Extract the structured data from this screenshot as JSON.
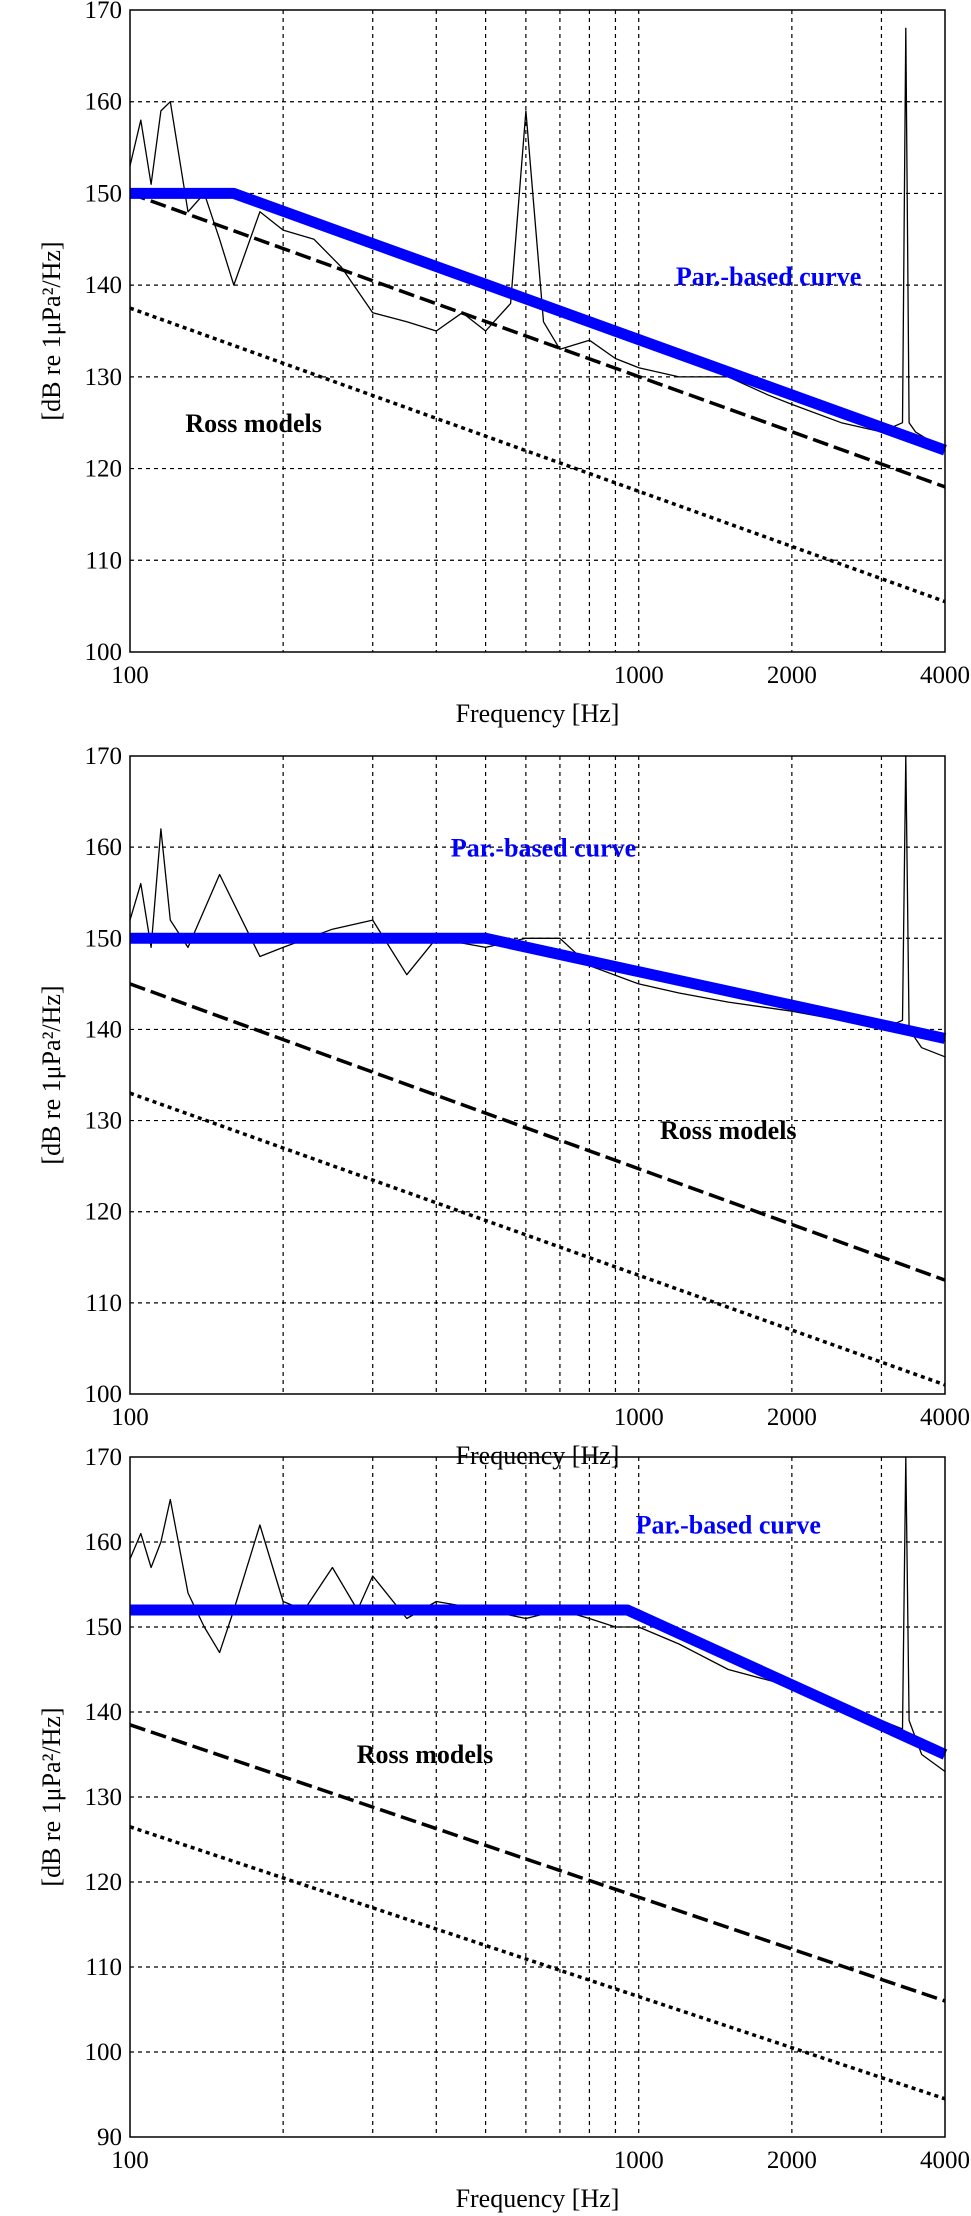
{
  "chart_data": [
    {
      "type": "line",
      "x_scale": "log",
      "xlim": [
        100,
        4000
      ],
      "ylim": [
        100,
        170
      ],
      "xticks": [
        100,
        1000,
        2000,
        4000
      ],
      "xtick_labels": [
        "100",
        "1000",
        "2000",
        "4000"
      ],
      "yticks": [
        100,
        110,
        120,
        130,
        140,
        150,
        160,
        170
      ],
      "xlabel": "Frequency [Hz]",
      "ylabel": "[dB re 1μPa²/Hz]",
      "grid": true,
      "series": [
        {
          "name": "Par.-based curve",
          "color": "#0000ff",
          "style": "solid-thick",
          "x": [
            100,
            160,
            4000
          ],
          "y": [
            150,
            150,
            122
          ],
          "label_text": "Par.-based curve",
          "label_at": [
            1800,
            140
          ]
        },
        {
          "name": "Ross model (dashed)",
          "color": "#000000",
          "style": "dashed",
          "x": [
            100,
            4000
          ],
          "y": [
            150,
            118
          ]
        },
        {
          "name": "Ross model (dotted)",
          "color": "#000000",
          "style": "dotted",
          "x": [
            100,
            4000
          ],
          "y": [
            137.5,
            105.5
          ]
        },
        {
          "name": "Measured spectrum",
          "color": "#000000",
          "style": "thin",
          "x": [
            100,
            105,
            110,
            115,
            120,
            130,
            140,
            150,
            160,
            180,
            200,
            230,
            260,
            300,
            350,
            400,
            450,
            500,
            560,
            600,
            650,
            700,
            800,
            900,
            1000,
            1200,
            1500,
            1800,
            2000,
            2500,
            3000,
            3300,
            3350,
            3400,
            3500,
            4000
          ],
          "y": [
            153,
            158,
            151,
            159,
            160,
            148,
            150,
            145,
            140,
            148,
            146,
            145,
            142,
            137,
            136,
            135,
            137,
            135,
            138,
            159,
            136,
            133,
            134,
            132,
            131,
            130,
            130,
            128,
            127,
            125,
            124,
            125,
            168,
            125,
            124,
            122
          ]
        }
      ],
      "annotations": [
        {
          "text": "Ross models",
          "at": [
            175,
            124
          ]
        }
      ]
    },
    {
      "type": "line",
      "x_scale": "log",
      "xlim": [
        100,
        4000
      ],
      "ylim": [
        100,
        170
      ],
      "xticks": [
        100,
        1000,
        2000,
        4000
      ],
      "xtick_labels": [
        "100",
        "1000",
        "2000",
        "4000"
      ],
      "yticks": [
        100,
        110,
        120,
        130,
        140,
        150,
        160,
        170
      ],
      "xlabel": "Frequency [Hz]",
      "ylabel": "[dB re 1μPa²/Hz]",
      "grid": true,
      "series": [
        {
          "name": "Par.-based curve",
          "color": "#0000ff",
          "style": "solid-thick",
          "x": [
            100,
            500,
            4000
          ],
          "y": [
            150,
            150,
            139
          ],
          "label_text": "Par.-based curve",
          "label_at": [
            650,
            159
          ]
        },
        {
          "name": "Ross model (dashed)",
          "color": "#000000",
          "style": "dashed",
          "x": [
            100,
            4000
          ],
          "y": [
            145,
            112.5
          ]
        },
        {
          "name": "Ross model (dotted)",
          "color": "#000000",
          "style": "dotted",
          "x": [
            100,
            4000
          ],
          "y": [
            133,
            101
          ]
        },
        {
          "name": "Measured spectrum",
          "color": "#000000",
          "style": "thin",
          "x": [
            100,
            105,
            110,
            115,
            120,
            130,
            150,
            180,
            200,
            250,
            300,
            350,
            400,
            500,
            600,
            700,
            800,
            1000,
            1200,
            1500,
            2000,
            2500,
            3000,
            3300,
            3350,
            3400,
            3600,
            4000
          ],
          "y": [
            152,
            156,
            149,
            162,
            152,
            149,
            157,
            148,
            149,
            151,
            152,
            146,
            150,
            149,
            150,
            150,
            147,
            145,
            144,
            143,
            142,
            141,
            140,
            141,
            170,
            140,
            138,
            137
          ]
        }
      ],
      "annotations": [
        {
          "text": "Ross models",
          "at": [
            1500,
            128
          ]
        }
      ]
    },
    {
      "type": "line",
      "x_scale": "log",
      "xlim": [
        100,
        4000
      ],
      "ylim": [
        90,
        170
      ],
      "xticks": [
        100,
        1000,
        2000,
        4000
      ],
      "xtick_labels": [
        "100",
        "1000",
        "2000",
        "4000"
      ],
      "yticks": [
        90,
        100,
        110,
        120,
        130,
        140,
        150,
        160,
        170
      ],
      "xlabel": "Frequency [Hz]",
      "ylabel": "[dB re 1μPa²/Hz]",
      "grid": true,
      "series": [
        {
          "name": "Par.-based curve",
          "color": "#0000ff",
          "style": "solid-thick",
          "x": [
            100,
            950,
            4000
          ],
          "y": [
            152,
            152,
            135
          ],
          "label_text": "Par.-based curve",
          "label_at": [
            1500,
            161
          ]
        },
        {
          "name": "Ross model (dashed)",
          "color": "#000000",
          "style": "dashed",
          "x": [
            100,
            4000
          ],
          "y": [
            138.5,
            106
          ]
        },
        {
          "name": "Ross model (dotted)",
          "color": "#000000",
          "style": "dotted",
          "x": [
            100,
            4000
          ],
          "y": [
            126.5,
            94.5
          ]
        },
        {
          "name": "Measured spectrum",
          "color": "#000000",
          "style": "thin",
          "x": [
            100,
            105,
            110,
            115,
            120,
            130,
            140,
            150,
            160,
            180,
            200,
            220,
            250,
            280,
            300,
            350,
            400,
            500,
            600,
            700,
            800,
            900,
            1000,
            1200,
            1500,
            2000,
            2500,
            3000,
            3300,
            3350,
            3400,
            3600,
            4000
          ],
          "y": [
            158,
            161,
            157,
            160,
            165,
            154,
            150,
            147,
            152,
            162,
            153,
            152,
            157,
            152,
            156,
            151,
            153,
            152,
            151,
            152,
            151,
            150,
            150,
            148,
            145,
            143,
            141,
            139,
            138,
            170,
            139,
            135,
            133
          ]
        }
      ],
      "annotations": [
        {
          "text": "Ross models",
          "at": [
            380,
            134
          ]
        }
      ]
    }
  ]
}
